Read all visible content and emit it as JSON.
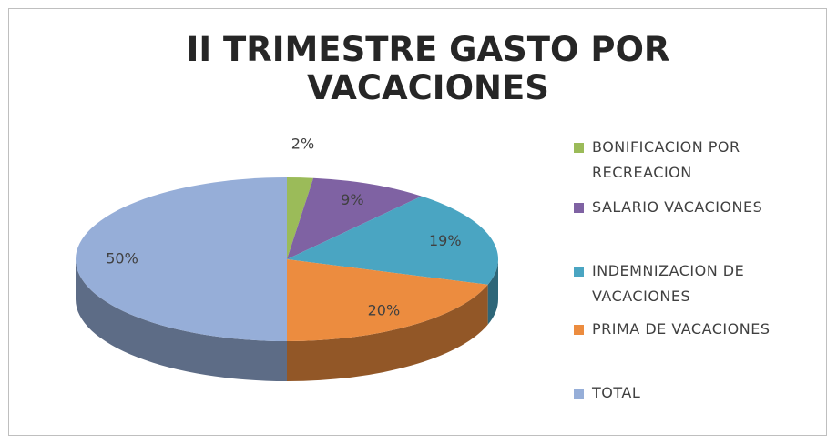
{
  "chart_data": {
    "type": "pie3d",
    "title": "II TRIMESTRE GASTO POR VACACIONES",
    "categories": [
      "BONIFICACION POR RECREACION",
      "SALARIO VACACIONES",
      "INDEMNIZACION DE VACACIONES",
      "PRIMA DE VACACIONES",
      "TOTAL"
    ],
    "values": [
      2,
      9,
      19,
      20,
      50
    ],
    "value_labels": [
      "2%",
      "9%",
      "19%",
      "20%",
      "50%"
    ],
    "colors": [
      "#9bbb59",
      "#7f62a3",
      "#4aa5c2",
      "#ec8c3f",
      "#96aed8"
    ],
    "legend": "right"
  }
}
